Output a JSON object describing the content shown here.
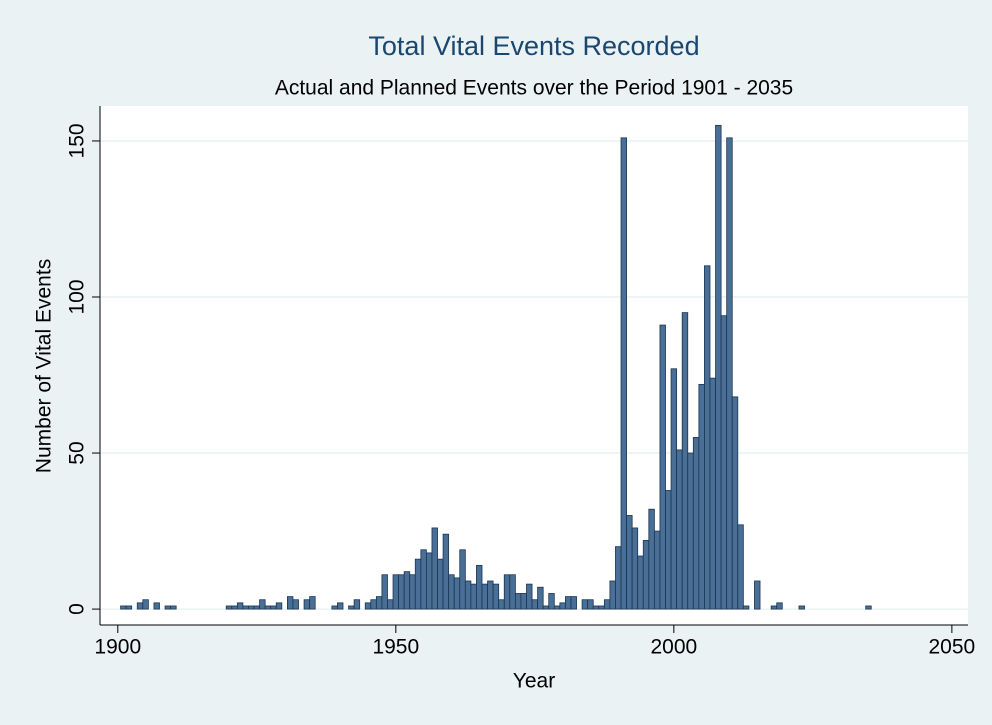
{
  "chart_data": {
    "type": "bar",
    "title": "Total Vital Events Recorded",
    "subtitle": "Actual and Planned Events over the Period 1901 - 2035",
    "x_label": "Year",
    "y_label": "Number of Vital Events",
    "x": [
      1901,
      1902,
      1904,
      1905,
      1907,
      1909,
      1910,
      1920,
      1921,
      1922,
      1923,
      1924,
      1925,
      1926,
      1927,
      1928,
      1929,
      1931,
      1932,
      1934,
      1935,
      1939,
      1940,
      1942,
      1943,
      1945,
      1946,
      1947,
      1948,
      1949,
      1950,
      1951,
      1952,
      1953,
      1954,
      1955,
      1956,
      1957,
      1958,
      1959,
      1960,
      1961,
      1962,
      1963,
      1964,
      1965,
      1966,
      1967,
      1968,
      1969,
      1970,
      1971,
      1972,
      1973,
      1974,
      1975,
      1976,
      1977,
      1978,
      1979,
      1980,
      1981,
      1982,
      1984,
      1985,
      1986,
      1987,
      1988,
      1989,
      1990,
      1991,
      1992,
      1993,
      1994,
      1995,
      1996,
      1997,
      1998,
      1999,
      2000,
      2001,
      2002,
      2003,
      2004,
      2005,
      2006,
      2007,
      2008,
      2009,
      2010,
      2011,
      2012,
      2013,
      2015,
      2018,
      2019,
      2023,
      2035
    ],
    "values": [
      1,
      1,
      2,
      3,
      2,
      1,
      1,
      1,
      1,
      2,
      1,
      1,
      1,
      3,
      1,
      1,
      2,
      4,
      3,
      3,
      4,
      1,
      2,
      1,
      3,
      2,
      3,
      4,
      11,
      3,
      11,
      11,
      12,
      11,
      16,
      19,
      18,
      26,
      16,
      24,
      11,
      10,
      19,
      9,
      8,
      14,
      8,
      9,
      8,
      3,
      11,
      11,
      5,
      5,
      8,
      3,
      7,
      1,
      5,
      1,
      2,
      4,
      4,
      3,
      3,
      1,
      1,
      3,
      9,
      20,
      151,
      30,
      26,
      17,
      22,
      32,
      25,
      91,
      38,
      77,
      51,
      95,
      50,
      55,
      72,
      110,
      74,
      155,
      94,
      151,
      68,
      27,
      1,
      9,
      1,
      2,
      1,
      1
    ],
    "color": "#4a6f96",
    "xlim": [
      1896.8,
      2052.9
    ],
    "xticks": [
      1900,
      1950,
      2000,
      2050
    ],
    "ylim": [
      -5.1,
      161.2
    ],
    "yticks": [
      0,
      50,
      100,
      150
    ],
    "grid": true
  }
}
